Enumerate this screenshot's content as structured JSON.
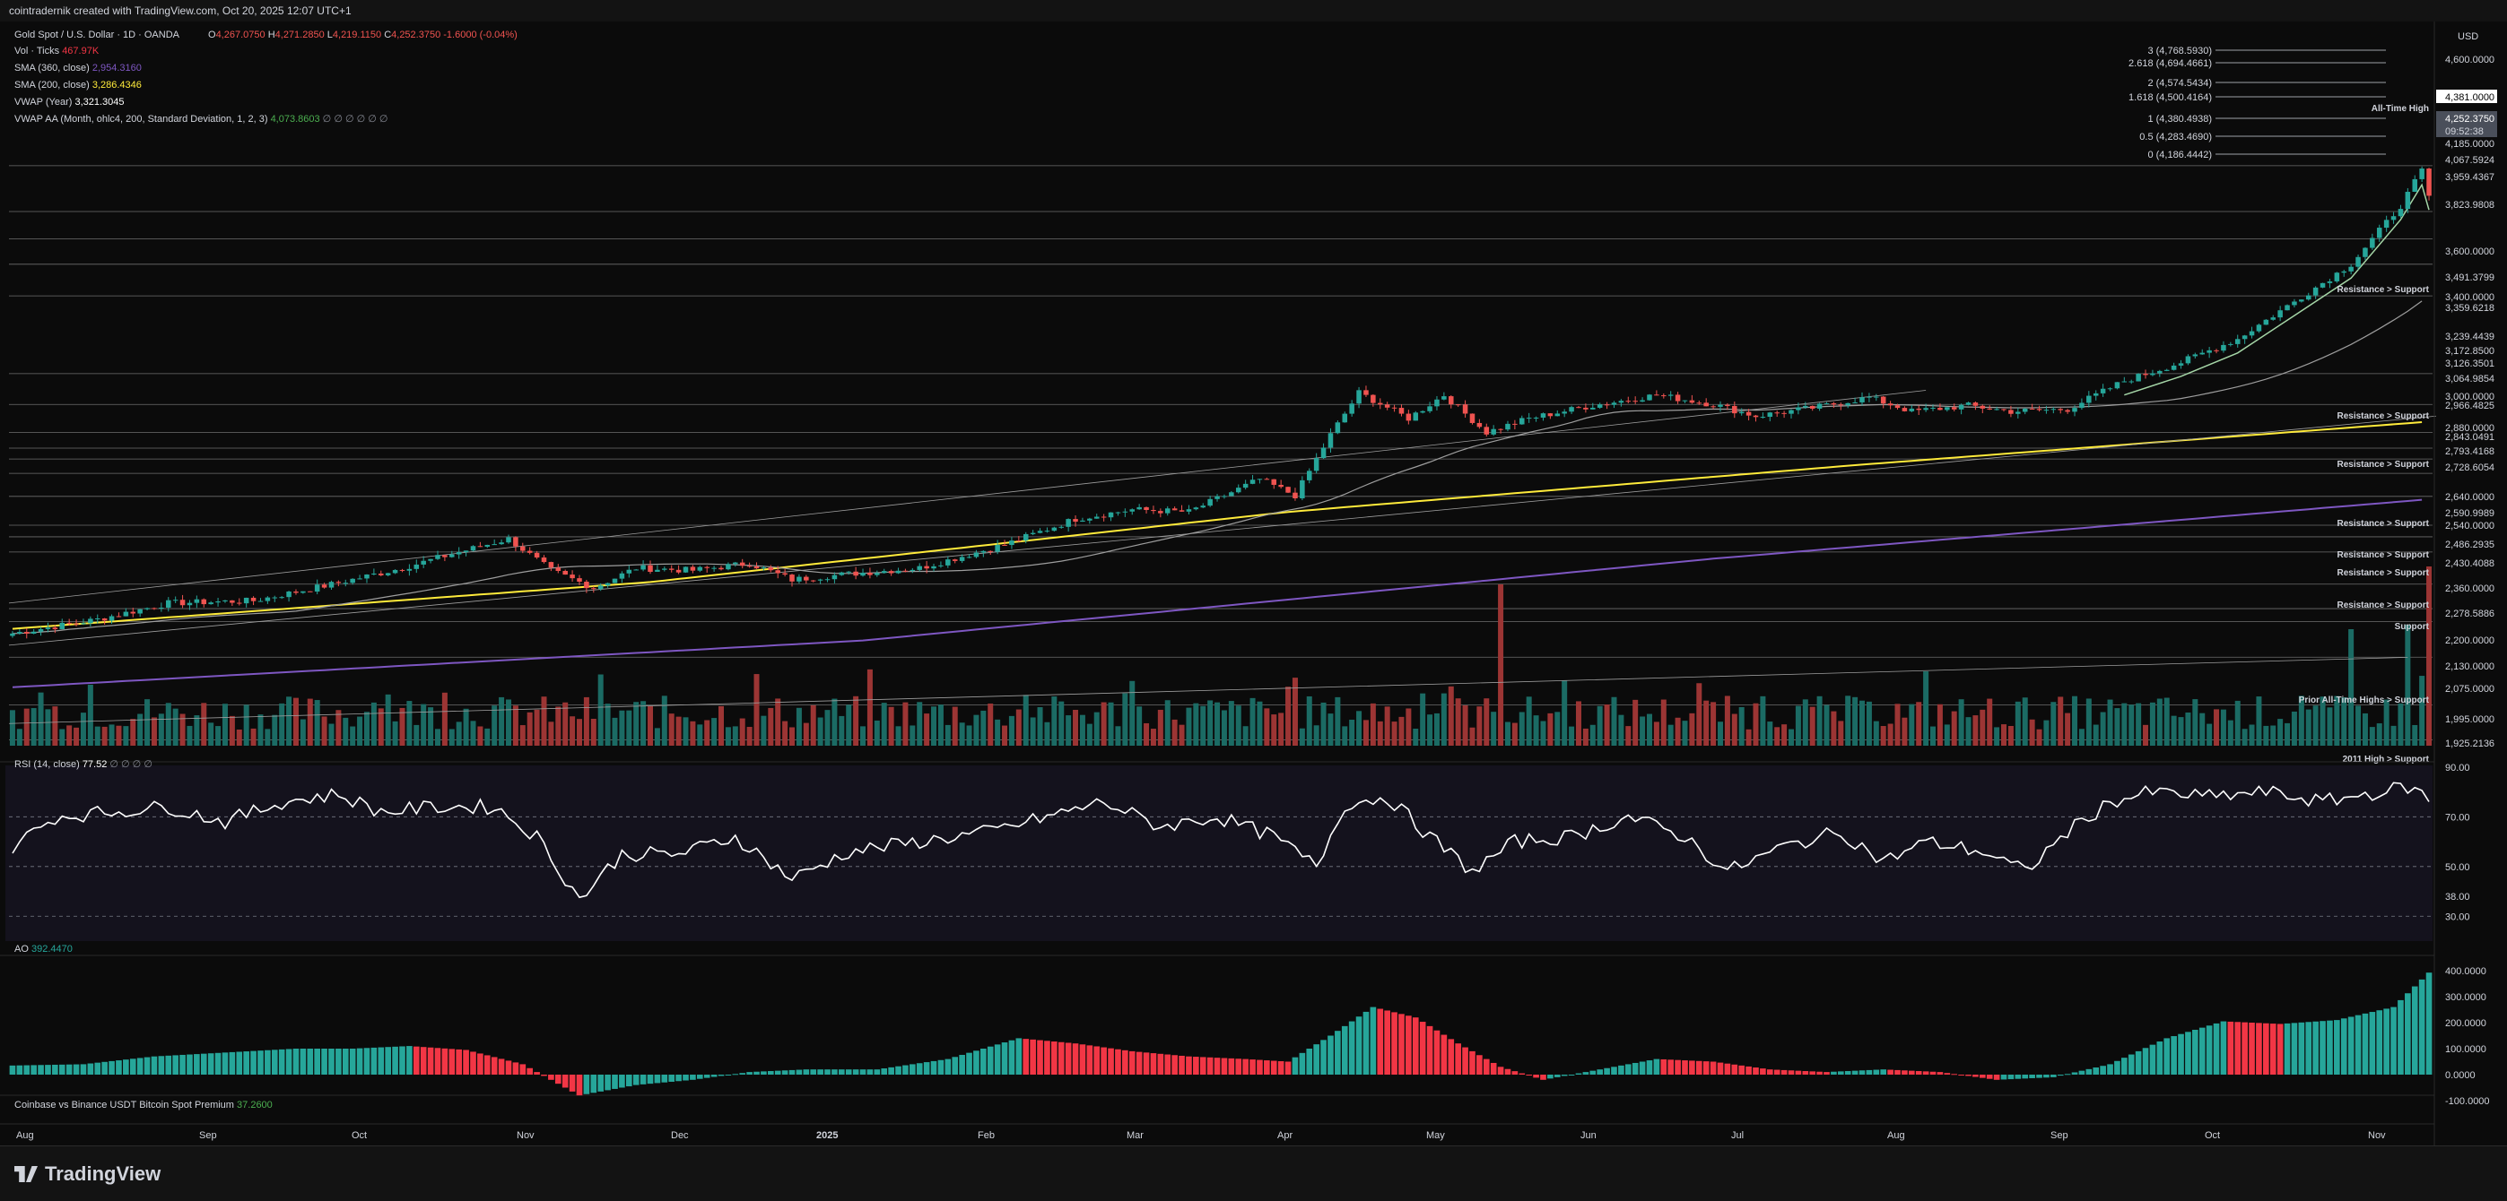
{
  "header": {
    "caption": "cointradernik created with TradingView.com, Oct 20, 2025 12:07 UTC+1"
  },
  "footer": {
    "brand": "TradingView"
  },
  "currency": "USD",
  "legend": {
    "symbol": "Gold Spot / U.S. Dollar · 1D · OANDA",
    "ohlc": [
      {
        "k": "O",
        "v": "4,267.0750"
      },
      {
        "k": "H",
        "v": "4,271.2850"
      },
      {
        "k": "L",
        "v": "4,219.1150"
      },
      {
        "k": "C",
        "v": "4,252.3750"
      }
    ],
    "change": "-1.6000 (-0.04%)",
    "indicators": [
      {
        "name": "Vol · Ticks",
        "value": "467.97K",
        "color": "#f23645"
      },
      {
        "name": "SMA (360, close)",
        "value": "2,954.3160",
        "color": "#7e57c2"
      },
      {
        "name": "SMA (200, close)",
        "value": "3,286.4346",
        "color": "#ffeb3b"
      },
      {
        "name": "VWAP (Year)",
        "value": "3,321.3045",
        "color": "#ffffff"
      },
      {
        "name": "VWAP AA (Month, ohlc4, 200, Standard Deviation, 1, 2, 3)",
        "value": "4,073.8603",
        "color": "#4caf50",
        "trail": "∅ ∅ ∅ ∅ ∅ ∅"
      }
    ]
  },
  "colors": {
    "up": "#26a69a",
    "down": "#ef5350",
    "bg": "#0b0b0b",
    "sma200": "#ffeb3b",
    "sma360": "#7e57c2",
    "vwap": "#ffffff",
    "rsi": "#ffffff",
    "ao_up": "#26a69a",
    "ao_down": "#f23645"
  },
  "price_axis": {
    "ticks": [
      "4,600.0000",
      "4,185.0000",
      "4,067.5924",
      "3,959.4367",
      "3,823.9808",
      "3,600.0000",
      "3,491.3799",
      "3,400.0000",
      "3,359.6218",
      "3,239.4439",
      "3,172.8500",
      "3,126.3501",
      "3,064.9854",
      "3,000.0000",
      "2,966.4825",
      "2,880.0000",
      "2,843.0491",
      "2,793.4168",
      "2,728.6054",
      "2,640.0000",
      "2,590.9989",
      "2,540.0000",
      "2,486.2935",
      "2,430.4088",
      "2,360.0000",
      "2,278.5886",
      "2,200.0000",
      "2,130.0000",
      "2,075.0000",
      "1,995.0000",
      "1,925.2136"
    ],
    "highlight": [
      {
        "text": "4,381.0000",
        "bg": "#ffffff",
        "fg": "#000000"
      },
      {
        "text": "4,252.3750",
        "bg": "#4a4f5a",
        "fg": "#ffffff"
      },
      {
        "text": "09:52:38",
        "bg": "#4a4f5a",
        "fg": "#d1d4dc"
      }
    ]
  },
  "fib_levels": [
    {
      "label": "3 (4,768.5930)"
    },
    {
      "label": "2.618 (4,694.4661)"
    },
    {
      "label": "2 (4,574.5434)"
    },
    {
      "label": "1.618 (4,500.4164)"
    },
    {
      "label": "1 (4,380.4938)"
    },
    {
      "label": "0.5 (4,283.4690)"
    },
    {
      "label": "0 (4,186.4442)"
    }
  ],
  "annotations": [
    "All-Time High",
    "Resistance > Support",
    "Resistance > Support",
    "Resistance > Support",
    "Resistance > Support",
    "Resistance > Support",
    "Resistance > Support",
    "Resistance > Support",
    "Support",
    "Prior All-Time Highs > Support",
    "2011 High > Support"
  ],
  "rsi": {
    "title": "RSI (14, close)",
    "value": "77.52",
    "trail": "∅ ∅ ∅ ∅",
    "ticks": [
      "90.00",
      "70.00",
      "50.00",
      "38.00",
      "30.00"
    ]
  },
  "ao": {
    "title": "AO",
    "value": "392.4470",
    "ticks": [
      "400.0000",
      "300.0000",
      "200.0000",
      "100.0000",
      "0.0000",
      "-100.0000"
    ]
  },
  "premium": {
    "title": "Coinbase vs Binance USDT Bitcoin Spot Premium",
    "value": "37.2600"
  },
  "time_axis": [
    "Aug",
    "Sep",
    "Oct",
    "Nov",
    "Dec",
    "2025",
    "Feb",
    "Mar",
    "Apr",
    "May",
    "Jun",
    "Jul",
    "Aug",
    "Sep",
    "Oct",
    "Nov"
  ],
  "chart_data": {
    "type": "candlestick",
    "title": "Gold Spot / U.S. Dollar · 1D · OANDA",
    "anchors": [
      {
        "x": 0,
        "y": 2380
      },
      {
        "x": 12,
        "y": 2440
      },
      {
        "x": 22,
        "y": 2510
      },
      {
        "x": 34,
        "y": 2520
      },
      {
        "x": 45,
        "y": 2590
      },
      {
        "x": 55,
        "y": 2660
      },
      {
        "x": 62,
        "y": 2720
      },
      {
        "x": 70,
        "y": 2785
      },
      {
        "x": 76,
        "y": 2650
      },
      {
        "x": 82,
        "y": 2575
      },
      {
        "x": 88,
        "y": 2660
      },
      {
        "x": 96,
        "y": 2650
      },
      {
        "x": 104,
        "y": 2680
      },
      {
        "x": 110,
        "y": 2610
      },
      {
        "x": 118,
        "y": 2635
      },
      {
        "x": 128,
        "y": 2660
      },
      {
        "x": 140,
        "y": 2760
      },
      {
        "x": 150,
        "y": 2870
      },
      {
        "x": 158,
        "y": 2910
      },
      {
        "x": 166,
        "y": 2900
      },
      {
        "x": 176,
        "y": 3040
      },
      {
        "x": 181,
        "y": 2970
      },
      {
        "x": 186,
        "y": 3230
      },
      {
        "x": 190,
        "y": 3410
      },
      {
        "x": 197,
        "y": 3300
      },
      {
        "x": 202,
        "y": 3400
      },
      {
        "x": 208,
        "y": 3240
      },
      {
        "x": 214,
        "y": 3300
      },
      {
        "x": 222,
        "y": 3350
      },
      {
        "x": 232,
        "y": 3400
      },
      {
        "x": 240,
        "y": 3360
      },
      {
        "x": 246,
        "y": 3310
      },
      {
        "x": 254,
        "y": 3345
      },
      {
        "x": 262,
        "y": 3390
      },
      {
        "x": 268,
        "y": 3330
      },
      {
        "x": 276,
        "y": 3355
      },
      {
        "x": 282,
        "y": 3330
      },
      {
        "x": 290,
        "y": 3340
      },
      {
        "x": 298,
        "y": 3460
      },
      {
        "x": 306,
        "y": 3540
      },
      {
        "x": 314,
        "y": 3640
      },
      {
        "x": 322,
        "y": 3800
      },
      {
        "x": 330,
        "y": 3960
      },
      {
        "x": 337,
        "y": 4210
      },
      {
        "x": 340,
        "y": 4359
      },
      {
        "x": 341,
        "y": 4252
      }
    ],
    "rsi_anchors": [
      {
        "x": 0,
        "y": 58
      },
      {
        "x": 6,
        "y": 70
      },
      {
        "x": 14,
        "y": 72
      },
      {
        "x": 22,
        "y": 74
      },
      {
        "x": 30,
        "y": 68
      },
      {
        "x": 38,
        "y": 76
      },
      {
        "x": 46,
        "y": 79
      },
      {
        "x": 52,
        "y": 72
      },
      {
        "x": 60,
        "y": 74
      },
      {
        "x": 68,
        "y": 74
      },
      {
        "x": 74,
        "y": 62
      },
      {
        "x": 80,
        "y": 37
      },
      {
        "x": 86,
        "y": 55
      },
      {
        "x": 94,
        "y": 55
      },
      {
        "x": 102,
        "y": 62
      },
      {
        "x": 110,
        "y": 45
      },
      {
        "x": 118,
        "y": 56
      },
      {
        "x": 128,
        "y": 60
      },
      {
        "x": 138,
        "y": 64
      },
      {
        "x": 146,
        "y": 70
      },
      {
        "x": 154,
        "y": 76
      },
      {
        "x": 162,
        "y": 66
      },
      {
        "x": 170,
        "y": 70
      },
      {
        "x": 178,
        "y": 62
      },
      {
        "x": 184,
        "y": 50
      },
      {
        "x": 188,
        "y": 75
      },
      {
        "x": 194,
        "y": 78
      },
      {
        "x": 200,
        "y": 62
      },
      {
        "x": 206,
        "y": 48
      },
      {
        "x": 212,
        "y": 60
      },
      {
        "x": 220,
        "y": 62
      },
      {
        "x": 228,
        "y": 70
      },
      {
        "x": 236,
        "y": 62
      },
      {
        "x": 242,
        "y": 48
      },
      {
        "x": 250,
        "y": 58
      },
      {
        "x": 258,
        "y": 64
      },
      {
        "x": 264,
        "y": 52
      },
      {
        "x": 270,
        "y": 60
      },
      {
        "x": 278,
        "y": 56
      },
      {
        "x": 284,
        "y": 48
      },
      {
        "x": 290,
        "y": 64
      },
      {
        "x": 296,
        "y": 76
      },
      {
        "x": 302,
        "y": 80
      },
      {
        "x": 310,
        "y": 78
      },
      {
        "x": 318,
        "y": 80
      },
      {
        "x": 326,
        "y": 76
      },
      {
        "x": 334,
        "y": 80
      },
      {
        "x": 338,
        "y": 82
      },
      {
        "x": 341,
        "y": 77.52
      }
    ],
    "ao_anchors": [
      {
        "x": 0,
        "y": 35
      },
      {
        "x": 10,
        "y": 40
      },
      {
        "x": 20,
        "y": 70
      },
      {
        "x": 30,
        "y": 85
      },
      {
        "x": 40,
        "y": 100
      },
      {
        "x": 48,
        "y": 100
      },
      {
        "x": 56,
        "y": 110
      },
      {
        "x": 64,
        "y": 95
      },
      {
        "x": 72,
        "y": 40
      },
      {
        "x": 80,
        "y": -80
      },
      {
        "x": 88,
        "y": -40
      },
      {
        "x": 96,
        "y": -20
      },
      {
        "x": 104,
        "y": 10
      },
      {
        "x": 112,
        "y": 20
      },
      {
        "x": 122,
        "y": 20
      },
      {
        "x": 132,
        "y": 60
      },
      {
        "x": 142,
        "y": 140
      },
      {
        "x": 150,
        "y": 120
      },
      {
        "x": 158,
        "y": 90
      },
      {
        "x": 166,
        "y": 70
      },
      {
        "x": 174,
        "y": 60
      },
      {
        "x": 180,
        "y": 50
      },
      {
        "x": 186,
        "y": 150
      },
      {
        "x": 192,
        "y": 260
      },
      {
        "x": 198,
        "y": 220
      },
      {
        "x": 204,
        "y": 120
      },
      {
        "x": 210,
        "y": 30
      },
      {
        "x": 216,
        "y": -20
      },
      {
        "x": 224,
        "y": 20
      },
      {
        "x": 232,
        "y": 60
      },
      {
        "x": 240,
        "y": 50
      },
      {
        "x": 248,
        "y": 20
      },
      {
        "x": 256,
        "y": 10
      },
      {
        "x": 264,
        "y": 20
      },
      {
        "x": 272,
        "y": 10
      },
      {
        "x": 280,
        "y": -20
      },
      {
        "x": 288,
        "y": -10
      },
      {
        "x": 296,
        "y": 40
      },
      {
        "x": 304,
        "y": 140
      },
      {
        "x": 312,
        "y": 205
      },
      {
        "x": 320,
        "y": 195
      },
      {
        "x": 328,
        "y": 210
      },
      {
        "x": 336,
        "y": 260
      },
      {
        "x": 341,
        "y": 392.447
      }
    ],
    "sma200": [
      [
        0,
        2400
      ],
      [
        90,
        2600
      ],
      [
        180,
        2900
      ],
      [
        260,
        3100
      ],
      [
        341,
        3286.4346
      ]
    ],
    "sma360": [
      [
        0,
        2150
      ],
      [
        120,
        2350
      ],
      [
        240,
        2700
      ],
      [
        341,
        2954.316
      ]
    ],
    "ylim": [
      1925,
      4800
    ]
  }
}
